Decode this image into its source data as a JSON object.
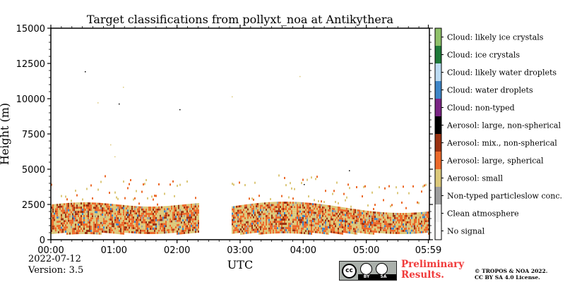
{
  "chart_data": {
    "type": "heatmap",
    "title": "Target classifications from pollyxt_noa at Antikythera",
    "xlabel": "UTC",
    "ylabel": "Height (m)",
    "x_ticks": [
      "00:00",
      "01:00",
      "02:00",
      "03:00",
      "04:00",
      "05:00",
      "05:59"
    ],
    "y_ticks": [
      0,
      2500,
      5000,
      7500,
      10000,
      12500,
      15000
    ],
    "xlim_hours": [
      0,
      6
    ],
    "ylim": [
      0,
      15000
    ],
    "data_gap_hours": [
      2.33,
      2.85
    ],
    "dominant_layer": {
      "base_m": 500,
      "top_m": 2800,
      "classes": [
        "Aerosol: small",
        "Aerosol: large, spherical",
        "Aerosol: mix., non-spherical"
      ]
    },
    "legend": [
      {
        "label": "Cloud: likely ice crystals",
        "color": "#8fc16a"
      },
      {
        "label": "Cloud: ice crystals",
        "color": "#1f7a3a"
      },
      {
        "label": "Cloud: likely water droplets",
        "color": "#bcdcf3"
      },
      {
        "label": "Cloud: water droplets",
        "color": "#3e86c8"
      },
      {
        "label": "Cloud: non-typed",
        "color": "#7b2585"
      },
      {
        "label": "Aerosol: large, non-spherical",
        "color": "#000000"
      },
      {
        "label": "Aerosol: mix., non-spherical",
        "color": "#9b3212"
      },
      {
        "label": "Aerosol: large, spherical",
        "color": "#ec6a2a"
      },
      {
        "label": "Aerosol: small",
        "color": "#dcc87a"
      },
      {
        "label": "Non-typed particleslow conc.",
        "color": "#9e9e9e"
      },
      {
        "label": "Clean atmosphere",
        "color": "#f2f2f2"
      },
      {
        "label": "No signal",
        "color": "#ffffff"
      }
    ]
  },
  "footer": {
    "date": "2022-07-12",
    "version": "Version: 3.5",
    "preliminary_line1": "Preliminary",
    "preliminary_line2": "Results.",
    "copyright_line1": "© TROPOS & NOA 2022.",
    "copyright_line2": "CC BY SA 4.0 License.",
    "cc_label": "cc",
    "cc_by": "BY",
    "cc_sa": "SA"
  }
}
